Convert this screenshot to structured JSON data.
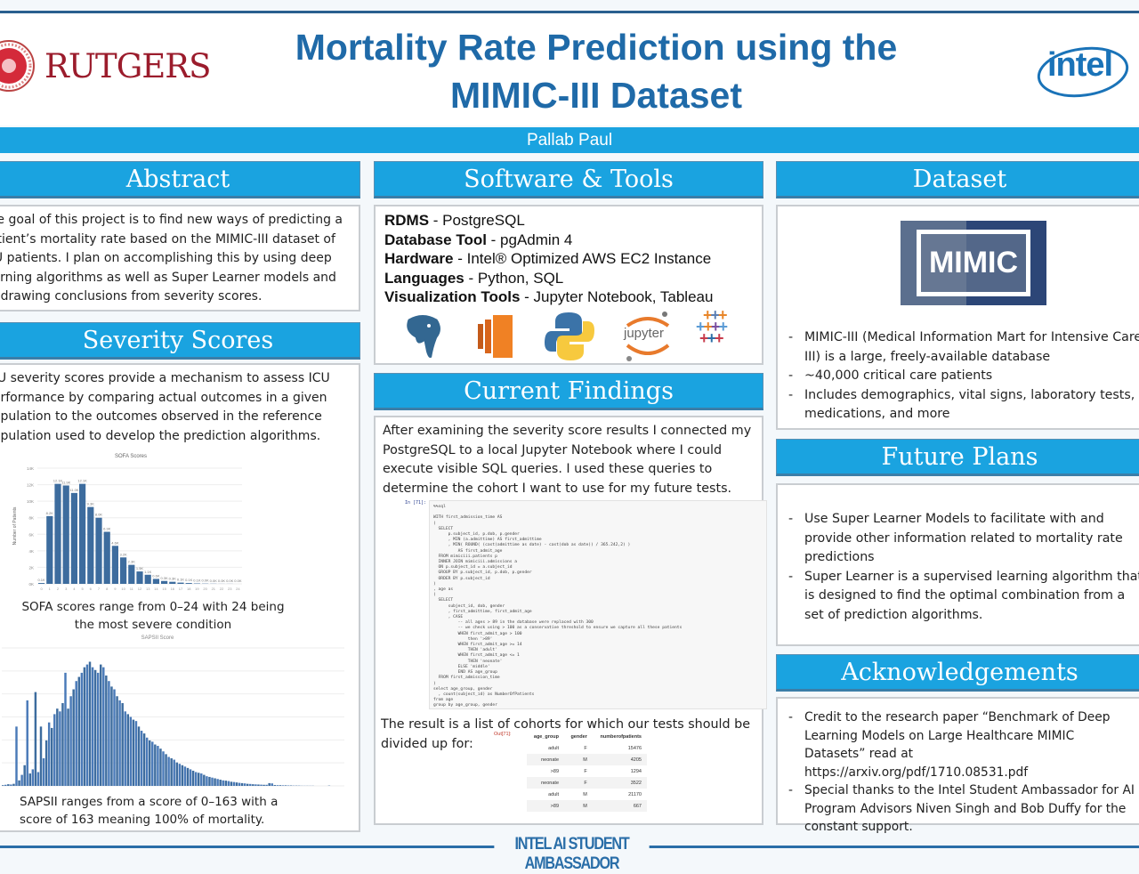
{
  "header": {
    "title_line1": "Mortality Rate Prediction using the",
    "title_line2": "MIMIC-III Dataset",
    "author": "Pallab Paul",
    "left_logo": "RUTGERS",
    "right_logo": "intel"
  },
  "abstract": {
    "heading": "Abstract",
    "text": "The goal of this project is to find new ways of predicting a patient’s mortality rate based on the MIMIC-III dataset of ICU patients. I plan on accomplishing this by using deep learning  algorithms as well as Super Learner models and by drawing conclusions from severity scores."
  },
  "severity": {
    "heading": "Severity Scores",
    "text": "ICU severity scores provide a mechanism to assess ICU performance by comparing actual outcomes in a given population to the outcomes observed in the reference population used to develop the prediction algorithms.",
    "sofa_caption": "SOFA scores range from 0–24 with 24 being the most severe condition",
    "sapsii_caption": "SAPSII ranges from a score of 0–163 with a score of 163 meaning 100% of mortality."
  },
  "software": {
    "heading": "Software & Tools",
    "items": [
      {
        "key": "RDMS",
        "value": "PostgreSQL"
      },
      {
        "key": "Database Tool",
        "value": "pgAdmin 4"
      },
      {
        "key": "Hardware",
        "value": "Intel® Optimized AWS EC2 Instance"
      },
      {
        "key": "Languages",
        "value": "Python, SQL"
      },
      {
        "key": "Visualization Tools",
        "value": "Jupyter Notebook, Tableau"
      }
    ],
    "sep": " - ",
    "icons": [
      "postgresql-icon",
      "aws-icon",
      "python-icon",
      "jupyter-icon",
      "tableau-icon"
    ],
    "jupyter_label": "jupyter"
  },
  "findings": {
    "heading": "Current Findings",
    "text": "After examining the severity score results I connected my PostgreSQL to a local Jupyter Notebook where I could execute visible SQL queries. I used these queries to determine the cohort I want to use for my future tests.",
    "code_prompt": "In [71]:",
    "code": [
      "%%sql",
      "",
      "WITH first_admission_time AS",
      "(",
      "  SELECT",
      "      p.subject_id, p.dob, p.gender",
      "      , MIN (a.admittime) AS first_admittime",
      "      , MIN( ROUND( (cast(admittime as date) - cast(dob as date)) / 365.242,2) )",
      "          AS first_admit_age",
      "  FROM mimiciii.patients p",
      "  INNER JOIN mimiciii.admissions a",
      "  ON p.subject_id = a.subject_id",
      "  GROUP BY p.subject_id, p.dob, p.gender",
      "  ORDER BY p.subject_id",
      ")",
      ", age as",
      "(",
      "  SELECT",
      "      subject_id, dob, gender",
      "      , first_admittime, first_admit_age",
      "      , CASE",
      "          -- all ages > 89 in the database were replaced with 300",
      "          -- we check using > 100 as a conservative threshold to ensure we capture all these patients",
      "          WHEN first_admit_age > 100",
      "              then '>89'",
      "          WHEN first_admit_age >= 14",
      "              THEN 'adult'",
      "          WHEN first_admit_age <= 1",
      "              THEN 'neonate'",
      "          ELSE 'middle'",
      "          END AS age_group",
      "  FROM first_admission_time",
      ")",
      "select age_group, gender",
      "  , count(subject_id) as NumberOfPatients",
      "from age",
      "group by age_group, gender"
    ],
    "result_text": "The result is a list of cohorts for which our tests should be divided up for:",
    "out_prompt": "Out[71]:",
    "table": {
      "headers": [
        "age_group",
        "gender",
        "numberofpatients"
      ],
      "rows": [
        [
          "adult",
          "F",
          "15476"
        ],
        [
          "neonate",
          "M",
          "4205"
        ],
        [
          ">89",
          "F",
          "1294"
        ],
        [
          "neonate",
          "F",
          "3522"
        ],
        [
          "adult",
          "M",
          "21170"
        ],
        [
          ">89",
          "M",
          "667"
        ]
      ]
    }
  },
  "dataset": {
    "heading": "Dataset",
    "logo": "MIMIC",
    "bullets": [
      "MIMIC-III (Medical Information Mart for Intensive Care III) is a large, freely-available database",
      "~40,000 critical care patients",
      "Includes demographics, vital signs, laboratory tests, medications, and more"
    ]
  },
  "future": {
    "heading": "Future Plans",
    "bullets": [
      "Use Super Learner Models to facilitate with and provide other information related to mortality rate predictions",
      "Super Learner is a supervised learning algorithm that is designed to find the optimal combination from a set of prediction algorithms."
    ]
  },
  "ack": {
    "heading": "Acknowledgements",
    "bullets": [
      "Credit to the research paper “Benchmark of Deep Learning Models on Large Healthcare MIMIC Datasets” read at https://arxiv.org/pdf/1710.08531.pdf",
      "Special thanks to the Intel Student Ambassador for AI Program Advisors Niven Singh and Bob Duffy for the constant support."
    ]
  },
  "footer": {
    "text": "INTEL AI STUDENT AMBASSADOR"
  },
  "colors": {
    "accent": "#1aa3e0",
    "title": "#1f6aa8",
    "bar": "#3d6c9e",
    "rutgers": "#9b1c2c"
  },
  "chart_data": [
    {
      "type": "bar",
      "title": "SOFA Scores",
      "ylabel": "Number of Patients",
      "xlabel": "",
      "categories": [
        "0",
        "1",
        "2",
        "3",
        "4",
        "5",
        "6",
        "7",
        "8",
        "9",
        "10",
        "11",
        "12",
        "13",
        "14",
        "15",
        "16",
        "17",
        "18",
        "19",
        "20",
        "21",
        "22",
        "23",
        "24"
      ],
      "values": [
        0.1,
        8.2,
        12.1,
        11.9,
        11.0,
        12.1,
        9.3,
        8.0,
        6.3,
        4.6,
        3.2,
        2.3,
        1.5,
        1.1,
        0.6,
        0.35,
        0.25,
        0.15,
        0.1,
        0.05,
        0.03,
        0.02,
        0.01,
        0.01,
        0.0
      ],
      "units": "thousands",
      "ylim": [
        0,
        14
      ],
      "yticks": [
        "0K",
        "2K",
        "4K",
        "6K",
        "8K",
        "10K",
        "12K",
        "14K"
      ],
      "grid": true
    },
    {
      "type": "bar",
      "title": "SAPSII Score",
      "xlabel": "",
      "ylabel": "",
      "ylim": [
        0,
        1000
      ],
      "grid": true,
      "x_start": 0,
      "values": [
        5,
        8,
        12,
        10,
        15,
        430,
        40,
        80,
        150,
        620,
        90,
        120,
        680,
        100,
        430,
        200,
        330,
        460,
        420,
        520,
        560,
        540,
        600,
        820,
        560,
        650,
        700,
        760,
        790,
        820,
        860,
        880,
        900,
        860,
        840,
        820,
        880,
        860,
        800,
        760,
        720,
        700,
        650,
        620,
        600,
        540,
        520,
        500,
        480,
        470,
        430,
        400,
        380,
        350,
        330,
        320,
        300,
        290,
        270,
        250,
        230,
        210,
        200,
        190,
        170,
        160,
        150,
        140,
        130,
        120,
        110,
        100,
        95,
        90,
        80,
        70,
        65,
        60,
        55,
        50,
        45,
        40,
        38,
        35,
        30,
        28,
        25,
        22,
        20,
        18,
        15,
        14,
        12,
        11,
        10,
        9,
        8,
        8,
        20,
        18,
        6,
        5,
        5,
        4,
        4,
        3,
        3,
        2,
        2,
        2,
        1,
        1,
        1,
        1,
        1,
        0,
        0,
        0,
        0,
        0,
        2,
        0,
        0,
        0,
        0,
        0
      ]
    }
  ]
}
